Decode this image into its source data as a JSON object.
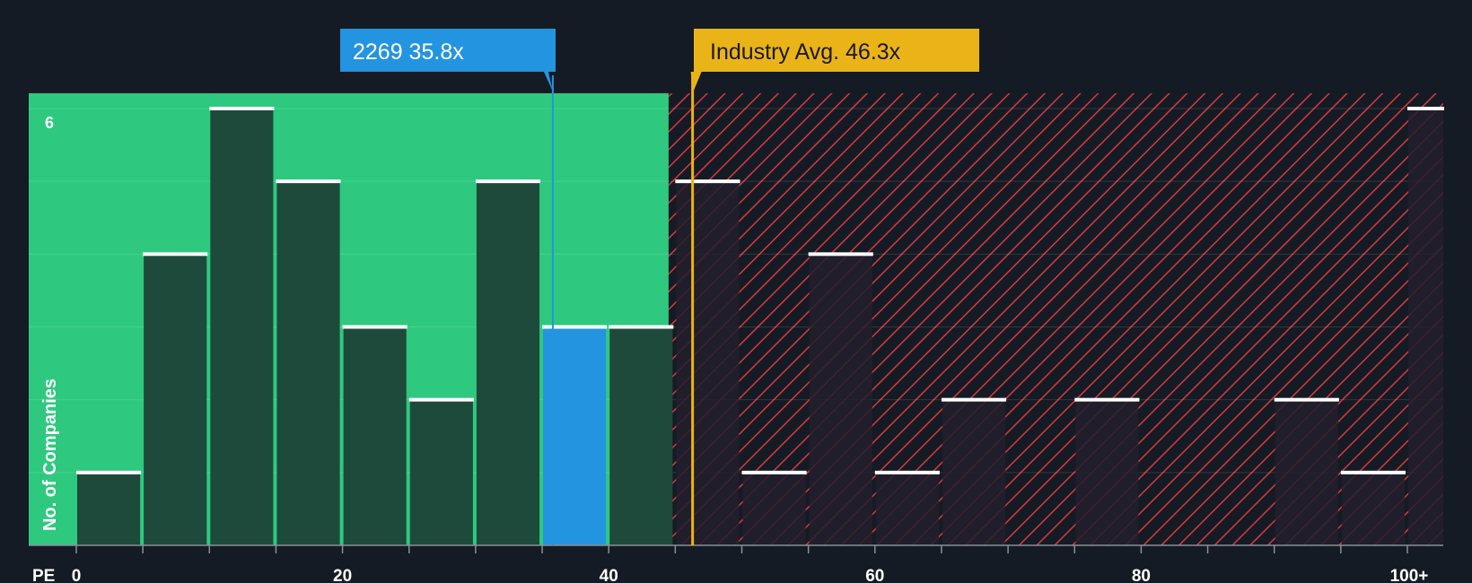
{
  "chart_data": {
    "type": "bar",
    "xlabel": "PE",
    "ylabel": "No. of Companies",
    "x_ticks": [
      "0",
      "20",
      "40",
      "60",
      "80",
      "100+"
    ],
    "y_tick_labels": [
      "6"
    ],
    "ylim": [
      0,
      6.2
    ],
    "bins": [
      {
        "from": 0,
        "to": 5,
        "count": 1
      },
      {
        "from": 5,
        "to": 10,
        "count": 4
      },
      {
        "from": 10,
        "to": 15,
        "count": 6
      },
      {
        "from": 15,
        "to": 20,
        "count": 5
      },
      {
        "from": 20,
        "to": 25,
        "count": 3
      },
      {
        "from": 25,
        "to": 30,
        "count": 2
      },
      {
        "from": 30,
        "to": 35,
        "count": 5
      },
      {
        "from": 35,
        "to": 40,
        "count": 3,
        "highlight": true
      },
      {
        "from": 40,
        "to": 45,
        "count": 3
      },
      {
        "from": 45,
        "to": 50,
        "count": 5
      },
      {
        "from": 50,
        "to": 55,
        "count": 1
      },
      {
        "from": 55,
        "to": 60,
        "count": 4
      },
      {
        "from": 60,
        "to": 65,
        "count": 1
      },
      {
        "from": 65,
        "to": 70,
        "count": 2
      },
      {
        "from": 70,
        "to": 75,
        "count": 0
      },
      {
        "from": 75,
        "to": 80,
        "count": 2
      },
      {
        "from": 80,
        "to": 85,
        "count": 0
      },
      {
        "from": 85,
        "to": 90,
        "count": 0
      },
      {
        "from": 90,
        "to": 95,
        "count": 2
      },
      {
        "from": 95,
        "to": 100,
        "count": 1
      },
      {
        "from": 100,
        "to": 105,
        "count": 6
      }
    ],
    "company_marker": {
      "label": "2269 35.8x",
      "value": 35.8
    },
    "industry_marker": {
      "label": "Industry Avg. 46.3x",
      "value": 46.3
    },
    "fair_zone_end": 44.5,
    "colors": {
      "background": "#151b24",
      "fair_zone": "#2ec97f",
      "bar_fair": "#1e4a3b",
      "bar_over": "#221f2b",
      "bar_highlight": "#2394e0",
      "hatch": "#d63a3e",
      "company_label": "#2394e0",
      "industry_label": "#eab318",
      "bar_cap": "#ffffff"
    }
  }
}
